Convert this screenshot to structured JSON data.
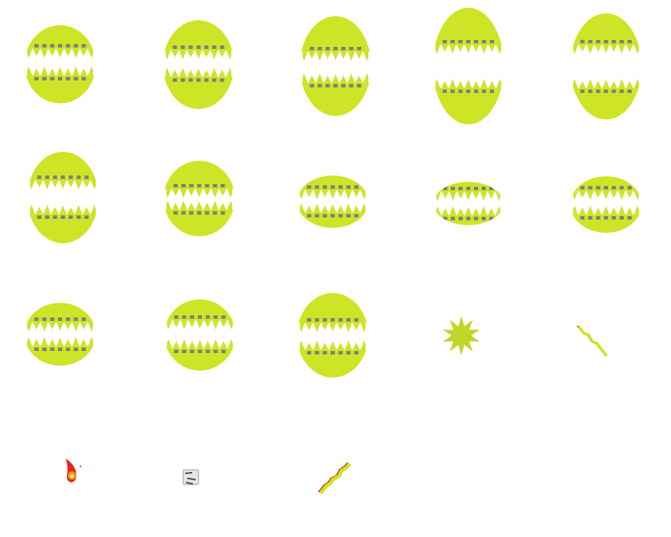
{
  "sheet": {
    "background": "#ffffff",
    "colors": {
      "jaw": "#cde526",
      "tooth_mark": "#7f7f7f",
      "tooth_shadow": "#b8b8b8",
      "star": "#c3d42a",
      "fire_outer": "#e8261a",
      "fire_mid": "#ff8a1c",
      "fire_core": "#fff26a",
      "ice": "#9a9a9a"
    },
    "sprites": [
      {
        "name": "mouth-frame-1",
        "icon": "chomping-mouth"
      },
      {
        "name": "mouth-frame-2",
        "icon": "chomping-mouth"
      },
      {
        "name": "mouth-frame-3",
        "icon": "chomping-mouth"
      },
      {
        "name": "mouth-frame-4",
        "icon": "chomping-mouth"
      },
      {
        "name": "mouth-frame-5",
        "icon": "chomping-mouth"
      },
      {
        "name": "mouth-frame-6",
        "icon": "chomping-mouth"
      },
      {
        "name": "mouth-frame-7",
        "icon": "chomping-mouth"
      },
      {
        "name": "mouth-frame-8",
        "icon": "chomping-mouth"
      },
      {
        "name": "mouth-frame-9",
        "icon": "chomping-mouth"
      },
      {
        "name": "mouth-frame-10",
        "icon": "chomping-mouth"
      },
      {
        "name": "mouth-frame-11",
        "icon": "chomping-mouth"
      },
      {
        "name": "mouth-frame-12",
        "icon": "chomping-mouth"
      },
      {
        "name": "mouth-frame-13",
        "icon": "chomping-mouth"
      },
      {
        "name": "impact-star",
        "icon": "star-burst"
      },
      {
        "name": "small-lightning",
        "icon": "lightning-bolt"
      },
      {
        "name": "fireball",
        "icon": "fireball"
      },
      {
        "name": "ice-cube",
        "icon": "ice-cube"
      },
      {
        "name": "large-lightning",
        "icon": "lightning-bolt"
      }
    ]
  }
}
